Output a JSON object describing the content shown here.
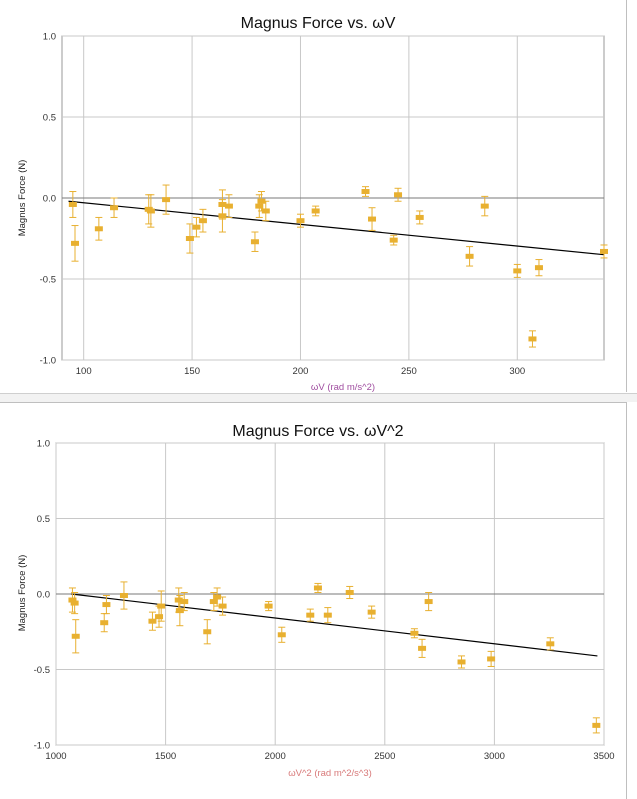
{
  "chart_data": [
    {
      "type": "scatter",
      "title": "Magnus Force vs. ωV",
      "xlabel": "ωV (rad m/s^2)",
      "ylabel": "Magnus Force (N)",
      "xlim": [
        90,
        340
      ],
      "ylim": [
        -1.0,
        1.0
      ],
      "xticks": [
        100,
        150,
        200,
        250,
        300
      ],
      "yticks": [
        -1.0,
        -0.5,
        0.0,
        0.5,
        1.0
      ],
      "xtick_labels": [
        "100",
        "150",
        "200",
        "250",
        "300"
      ],
      "ytick_labels": [
        "-1.0",
        "-0.5",
        "0.0",
        "0.5",
        "1.0"
      ],
      "grid": true,
      "marker_color": "#e8b030",
      "fit_color": "#000000",
      "xlabel_color": "#a04ea0",
      "fit": {
        "x": [
          93,
          340
        ],
        "y": [
          -0.02,
          -0.35
        ]
      },
      "points": [
        {
          "x": 95,
          "y": -0.04,
          "err": 0.08
        },
        {
          "x": 96,
          "y": -0.28,
          "err": 0.11
        },
        {
          "x": 107,
          "y": -0.19,
          "err": 0.07
        },
        {
          "x": 114,
          "y": -0.06,
          "err": 0.06
        },
        {
          "x": 130,
          "y": -0.07,
          "err": 0.09
        },
        {
          "x": 131,
          "y": -0.08,
          "err": 0.1
        },
        {
          "x": 138,
          "y": -0.01,
          "err": 0.09
        },
        {
          "x": 149,
          "y": -0.25,
          "err": 0.09
        },
        {
          "x": 152,
          "y": -0.18,
          "err": 0.06
        },
        {
          "x": 155,
          "y": -0.14,
          "err": 0.07
        },
        {
          "x": 164,
          "y": -0.04,
          "err": 0.09
        },
        {
          "x": 164,
          "y": -0.11,
          "err": 0.1
        },
        {
          "x": 167,
          "y": -0.05,
          "err": 0.07
        },
        {
          "x": 179,
          "y": -0.27,
          "err": 0.06
        },
        {
          "x": 181,
          "y": -0.05,
          "err": 0.07
        },
        {
          "x": 182,
          "y": -0.02,
          "err": 0.06
        },
        {
          "x": 184,
          "y": -0.08,
          "err": 0.06
        },
        {
          "x": 200,
          "y": -0.14,
          "err": 0.04
        },
        {
          "x": 207,
          "y": -0.08,
          "err": 0.03
        },
        {
          "x": 230,
          "y": 0.04,
          "err": 0.03
        },
        {
          "x": 233,
          "y": -0.13,
          "err": 0.07
        },
        {
          "x": 243,
          "y": -0.26,
          "err": 0.03
        },
        {
          "x": 245,
          "y": 0.02,
          "err": 0.04
        },
        {
          "x": 255,
          "y": -0.12,
          "err": 0.04
        },
        {
          "x": 278,
          "y": -0.36,
          "err": 0.06
        },
        {
          "x": 285,
          "y": -0.05,
          "err": 0.06
        },
        {
          "x": 300,
          "y": -0.45,
          "err": 0.04
        },
        {
          "x": 307,
          "y": -0.87,
          "err": 0.05
        },
        {
          "x": 310,
          "y": -0.43,
          "err": 0.05
        },
        {
          "x": 340,
          "y": -0.33,
          "err": 0.04
        }
      ]
    },
    {
      "type": "scatter",
      "title": "Magnus Force vs. ωV^2",
      "xlabel": "ωV^2 (rad m^2/s^3)",
      "ylabel": "Magnus Force (N)",
      "xlim": [
        1000,
        3500
      ],
      "ylim": [
        -1.0,
        1.0
      ],
      "xticks": [
        1000,
        1500,
        2000,
        2500,
        3000,
        3500
      ],
      "yticks": [
        -1.0,
        -0.5,
        0.0,
        0.5,
        1.0
      ],
      "xtick_labels": [
        "1000",
        "1500",
        "2000",
        "2500",
        "3000",
        "3500"
      ],
      "ytick_labels": [
        "-1.0",
        "-0.5",
        "0.0",
        "0.5",
        "1.0"
      ],
      "grid": true,
      "marker_color": "#e8b030",
      "fit_color": "#000000",
      "xlabel_color": "#d87a7a",
      "fit": {
        "x": [
          1070,
          3470
        ],
        "y": [
          0.0,
          -0.41
        ]
      },
      "points": [
        {
          "x": 1075,
          "y": -0.04,
          "err": 0.08
        },
        {
          "x": 1085,
          "y": -0.06,
          "err": 0.07
        },
        {
          "x": 1090,
          "y": -0.28,
          "err": 0.11
        },
        {
          "x": 1220,
          "y": -0.19,
          "err": 0.06
        },
        {
          "x": 1230,
          "y": -0.07,
          "err": 0.06
        },
        {
          "x": 1310,
          "y": -0.01,
          "err": 0.09
        },
        {
          "x": 1440,
          "y": -0.18,
          "err": 0.06
        },
        {
          "x": 1470,
          "y": -0.15,
          "err": 0.07
        },
        {
          "x": 1480,
          "y": -0.08,
          "err": 0.1
        },
        {
          "x": 1560,
          "y": -0.04,
          "err": 0.08
        },
        {
          "x": 1565,
          "y": -0.11,
          "err": 0.1
        },
        {
          "x": 1585,
          "y": -0.05,
          "err": 0.06
        },
        {
          "x": 1690,
          "y": -0.25,
          "err": 0.08
        },
        {
          "x": 1720,
          "y": -0.05,
          "err": 0.06
        },
        {
          "x": 1735,
          "y": -0.02,
          "err": 0.06
        },
        {
          "x": 1760,
          "y": -0.08,
          "err": 0.06
        },
        {
          "x": 1970,
          "y": -0.08,
          "err": 0.03
        },
        {
          "x": 2030,
          "y": -0.27,
          "err": 0.05
        },
        {
          "x": 2160,
          "y": -0.14,
          "err": 0.04
        },
        {
          "x": 2195,
          "y": 0.04,
          "err": 0.03
        },
        {
          "x": 2240,
          "y": -0.14,
          "err": 0.05
        },
        {
          "x": 2340,
          "y": 0.01,
          "err": 0.04
        },
        {
          "x": 2440,
          "y": -0.12,
          "err": 0.04
        },
        {
          "x": 2635,
          "y": -0.26,
          "err": 0.03
        },
        {
          "x": 2670,
          "y": -0.36,
          "err": 0.06
        },
        {
          "x": 2700,
          "y": -0.05,
          "err": 0.06
        },
        {
          "x": 2850,
          "y": -0.45,
          "err": 0.04
        },
        {
          "x": 2985,
          "y": -0.43,
          "err": 0.05
        },
        {
          "x": 3255,
          "y": -0.33,
          "err": 0.04
        },
        {
          "x": 3465,
          "y": -0.87,
          "err": 0.05
        }
      ]
    }
  ]
}
